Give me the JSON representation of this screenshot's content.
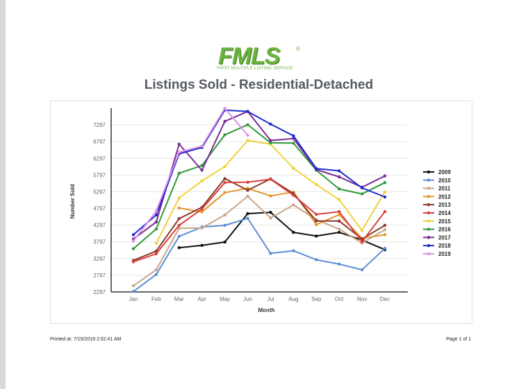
{
  "logo": {
    "mark": "FMLS",
    "registered": "®",
    "tagline": "FIRST MULTIPLE LISTING SERVICE"
  },
  "report": {
    "title": "Listings Sold - Residential-Detached"
  },
  "footer": {
    "printed": "Printed at:  7/15/2019 2:02:41 AM",
    "page": "Page 1 of 1"
  },
  "chart_data": {
    "type": "line",
    "title": "",
    "xlabel": "Month",
    "ylabel": "Number Sold",
    "categories": [
      "Jan",
      "Feb",
      "Mar",
      "Apr",
      "May",
      "Jun",
      "Jul",
      "Aug",
      "Sep",
      "Oct",
      "Nov",
      "Dec"
    ],
    "yticks": [
      2297,
      2797,
      3297,
      3797,
      4297,
      4797,
      5297,
      5797,
      6297,
      6797,
      7297
    ],
    "ylim": [
      2297,
      7797
    ],
    "grid": true,
    "legend": "right",
    "series": [
      {
        "name": "2009",
        "color": "#111111",
        "values": [
          null,
          null,
          3620,
          3690,
          3790,
          4640,
          4680,
          4080,
          3970,
          4080,
          3850,
          3560
        ]
      },
      {
        "name": "2010",
        "color": "#5b8fd6",
        "values": [
          2310,
          2820,
          3960,
          4240,
          4290,
          4500,
          3450,
          3530,
          3260,
          3130,
          2960,
          3600
        ]
      },
      {
        "name": "2011",
        "color": "#c9a689",
        "values": [
          2480,
          2960,
          4200,
          4210,
          4600,
          5160,
          4510,
          4900,
          4460,
          4180,
          3760,
          4160
        ]
      },
      {
        "name": "2012",
        "color": "#e3982d",
        "values": [
          null,
          null,
          4810,
          4690,
          5270,
          5400,
          5170,
          5290,
          4310,
          4610,
          3900,
          4010
        ]
      },
      {
        "name": "2013",
        "color": "#8b3a2b",
        "values": [
          3240,
          3520,
          4490,
          4830,
          5690,
          5340,
          5680,
          5240,
          4420,
          4420,
          3880,
          4290
        ]
      },
      {
        "name": "2014",
        "color": "#d9403a",
        "values": [
          3200,
          3440,
          4290,
          4780,
          5570,
          5580,
          5670,
          5190,
          4620,
          4700,
          3800,
          4700
        ]
      },
      {
        "name": "2015",
        "color": "#f0d23a",
        "values": [
          null,
          3750,
          5110,
          5620,
          6050,
          6830,
          6720,
          6000,
          5510,
          5060,
          4140,
          5290
        ]
      },
      {
        "name": "2016",
        "color": "#2e9a3a",
        "values": [
          3590,
          4180,
          5850,
          6080,
          7000,
          7300,
          6760,
          6750,
          5940,
          5380,
          5230,
          5570
        ]
      },
      {
        "name": "2017",
        "color": "#7b2a93",
        "values": [
          3880,
          4390,
          6720,
          5940,
          7400,
          7700,
          6830,
          6890,
          5960,
          5740,
          5430,
          5770
        ]
      },
      {
        "name": "2018",
        "color": "#1f2ad1",
        "values": [
          4010,
          4600,
          6430,
          6620,
          7740,
          7700,
          7320,
          6970,
          5990,
          5920,
          5410,
          5140
        ]
      },
      {
        "name": "2019",
        "color": "#dd8fe6",
        "values": [
          3820,
          4720,
          6480,
          6660,
          7790,
          6990,
          null,
          null,
          null,
          null,
          null,
          null
        ]
      }
    ]
  }
}
